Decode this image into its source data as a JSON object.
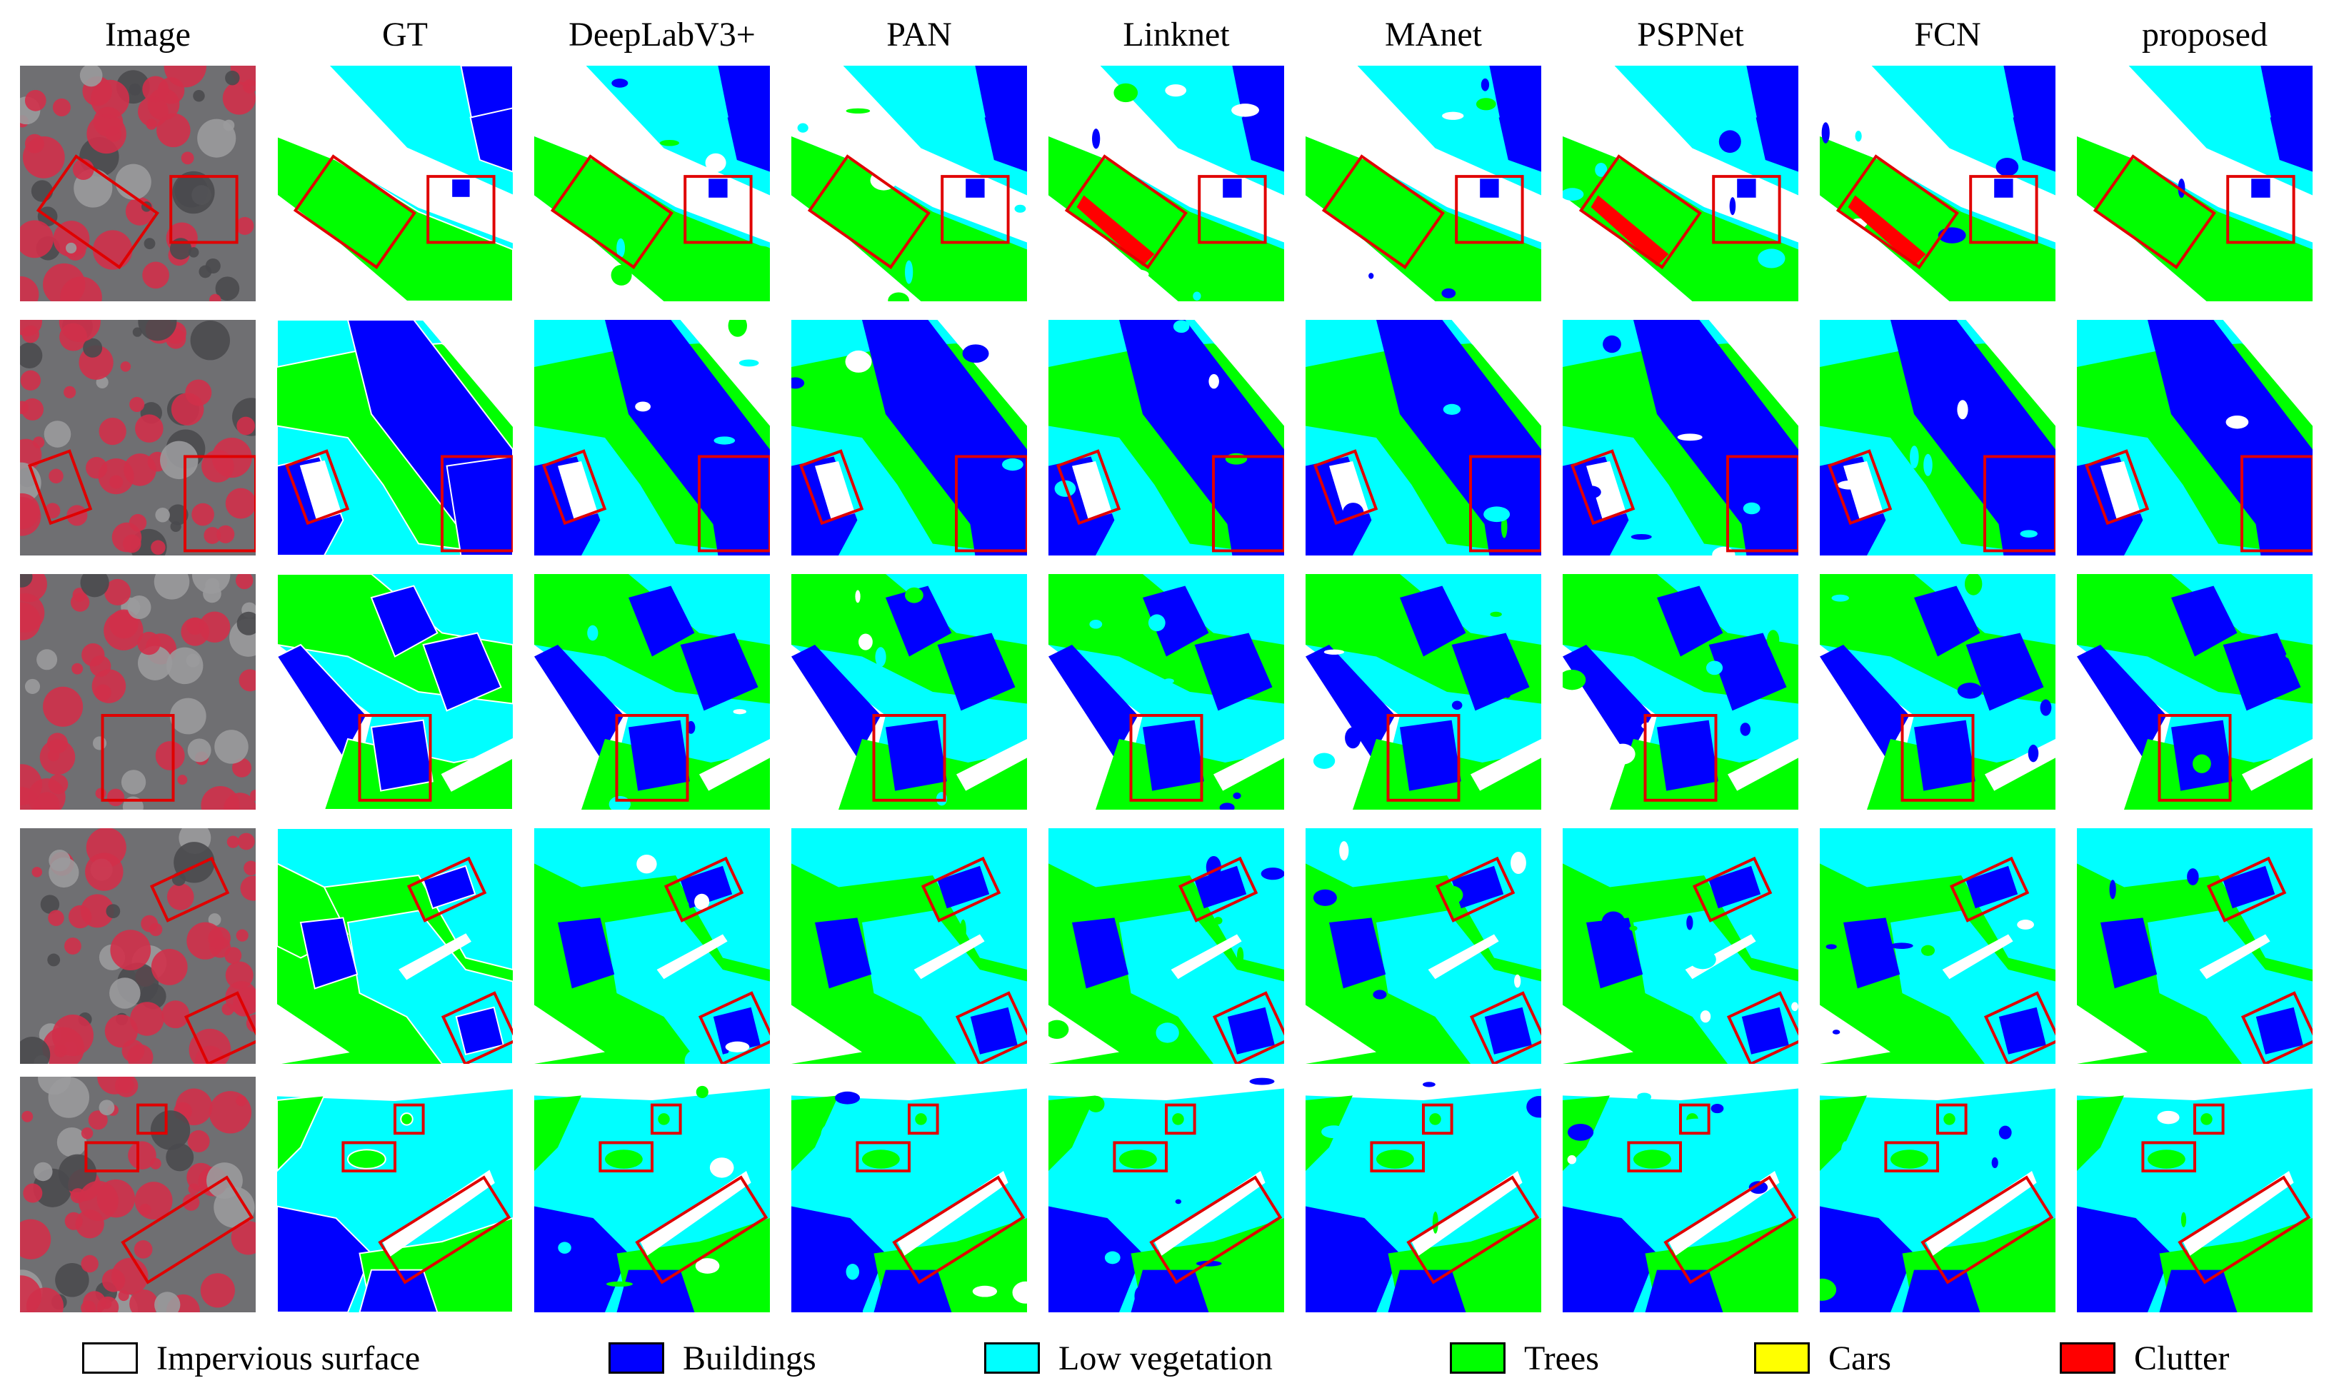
{
  "columns": [
    "Image",
    "GT",
    "DeepLabV3+",
    "PAN",
    "Linknet",
    "MAnet",
    "PSPNet",
    "FCN",
    "proposed"
  ],
  "legend": [
    {
      "label": "Impervious surface",
      "color": "#ffffff"
    },
    {
      "label": "Buildings",
      "color": "#0000ff"
    },
    {
      "label": "Low vegetation",
      "color": "#00ffff"
    },
    {
      "label": "Trees",
      "color": "#00ff00"
    },
    {
      "label": "Cars",
      "color": "#ffff00"
    },
    {
      "label": "Clutter",
      "color": "#ff0000"
    }
  ],
  "colors": {
    "impervious": "#ffffff",
    "buildings": "#0000ff",
    "low_vegetation": "#00ffff",
    "trees": "#00ff00",
    "cars": "#ffff00",
    "clutter": "#ff0000",
    "highlight_box": "#e00000",
    "photo_red": "#d0304a",
    "photo_gray": "#6f6f72"
  },
  "rows": 5
}
